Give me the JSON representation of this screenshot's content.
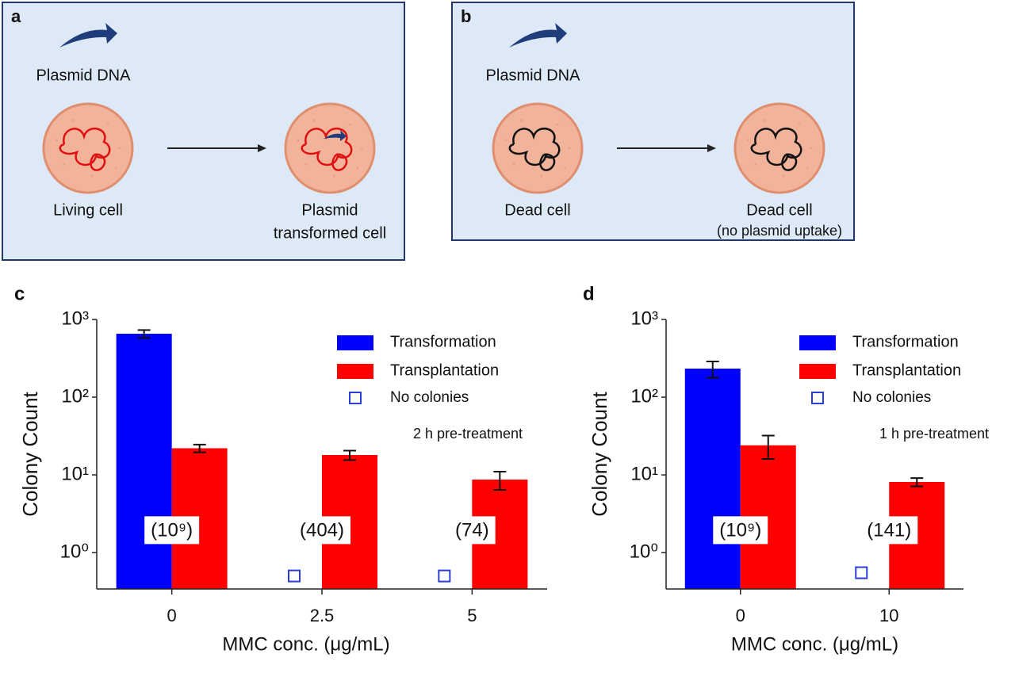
{
  "diagrams": [
    {
      "label": "a",
      "source": "Plasmid DNA",
      "left": "Living cell",
      "right": [
        "Plasmid",
        "transformed cell"
      ]
    },
    {
      "label": "b",
      "source": "Plasmid DNA",
      "left": "Dead cell",
      "right": [
        "Dead cell",
        "(no plasmid uptake)"
      ]
    }
  ],
  "chart_data": [
    {
      "type": "bar",
      "panel": "c",
      "xlabel": "MMC conc. (μg/mL)",
      "ylabel": "Colony Count",
      "log_scale": true,
      "note": "2 h pre-treatment",
      "legend": "upper right",
      "categories": [
        "0",
        "2.5",
        "5"
      ],
      "annotations": [
        "(10⁹)",
        "(404)",
        "(74)"
      ],
      "ylim": [
        0.34,
        1000
      ],
      "yticks": [
        {
          "value": 1,
          "label": "10⁰"
        },
        {
          "value": 10,
          "label": "10¹"
        },
        {
          "value": 100,
          "label": "10²"
        },
        {
          "value": 1000,
          "label": "10³"
        }
      ],
      "series": [
        {
          "name": "Transformation",
          "color": "#0000ff",
          "values": [
            655,
            null,
            null
          ],
          "errors": [
            75,
            null,
            null
          ]
        },
        {
          "name": "Transplantation",
          "color": "#ff0000",
          "values": [
            22,
            18,
            8.7
          ],
          "errors": [
            2.5,
            2.5,
            2.3
          ]
        },
        {
          "name": "No colonies",
          "color": "#2b3fd6",
          "marker": "square-open",
          "values": [
            null,
            0.5,
            0.5
          ]
        }
      ]
    },
    {
      "type": "bar",
      "panel": "d",
      "xlabel": "MMC conc. (μg/mL)",
      "ylabel": "Colony Count",
      "log_scale": true,
      "note": "1 h pre-treatment",
      "legend": "upper right",
      "categories": [
        "0",
        "10"
      ],
      "annotations": [
        "(10⁹)",
        "(141)"
      ],
      "ylim": [
        0.34,
        1000
      ],
      "yticks": [
        {
          "value": 1,
          "label": "10⁰"
        },
        {
          "value": 10,
          "label": "10¹"
        },
        {
          "value": 100,
          "label": "10²"
        },
        {
          "value": 1000,
          "label": "10³"
        }
      ],
      "series": [
        {
          "name": "Transformation",
          "color": "#0000ff",
          "values": [
            233,
            null
          ],
          "errors": [
            55,
            null
          ]
        },
        {
          "name": "Transplantation",
          "color": "#ff0000",
          "values": [
            24,
            8.1
          ],
          "errors": [
            8,
            1
          ]
        },
        {
          "name": "No colonies",
          "color": "#2b3fd6",
          "marker": "square-open",
          "values": [
            null,
            0.55
          ]
        }
      ]
    }
  ]
}
